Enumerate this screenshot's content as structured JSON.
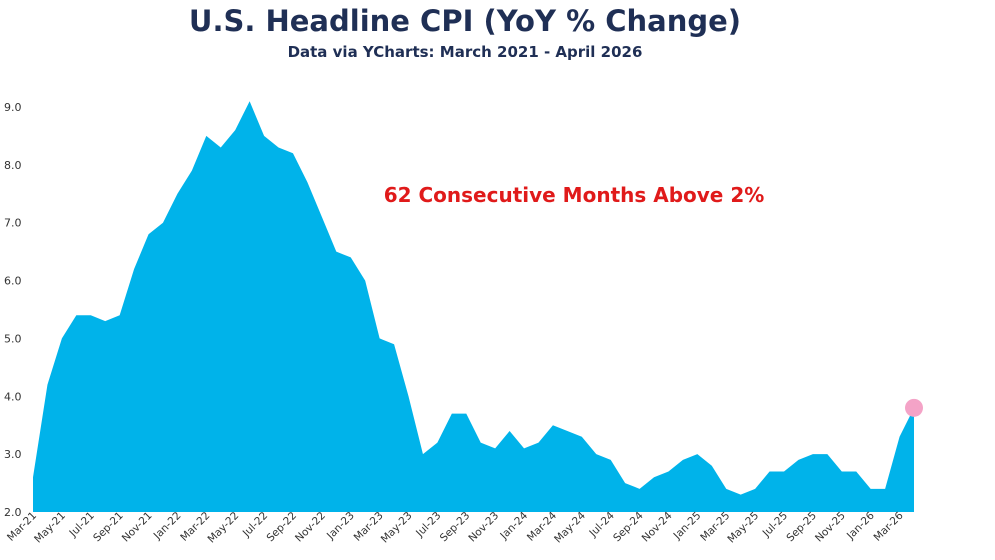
{
  "colors": {
    "title": "#1f2f55",
    "area": "#00b3ea",
    "annotation": "#e01a1a",
    "marker": "#f4a3c7"
  },
  "header": {
    "title": "U.S. Headline CPI (YoY % Change)",
    "subtitle": "Data via YCharts: March 2021 - April 2026"
  },
  "chart_data": {
    "type": "area",
    "title": "U.S. Headline CPI (YoY % Change)",
    "subtitle": "Data via YCharts: March 2021 - April 2026",
    "xlabel": "",
    "ylabel": "",
    "ylim": [
      2.0,
      9.0
    ],
    "yticks": [
      "2.0",
      "3.0",
      "4.0",
      "5.0",
      "6.0",
      "7.0",
      "8.0",
      "9.0"
    ],
    "grid": false,
    "legend": "none",
    "x_tick_labels": [
      "Mar-21",
      "May-21",
      "Jul-21",
      "Sep-21",
      "Nov-21",
      "Jan-22",
      "Mar-22",
      "May-22",
      "Jul-22",
      "Sep-22",
      "Nov-22",
      "Jan-23",
      "Mar-23",
      "May-23",
      "Jul-23",
      "Sep-23",
      "Nov-23",
      "Jan-24",
      "Mar-24",
      "May-24",
      "Jul-24",
      "Sep-24",
      "Nov-24",
      "Jan-25",
      "Mar-25",
      "May-25",
      "Jul-25",
      "Sep-25",
      "Nov-25",
      "Jan-26",
      "Mar-26"
    ],
    "x": [
      "Mar-21",
      "Apr-21",
      "May-21",
      "Jun-21",
      "Jul-21",
      "Aug-21",
      "Sep-21",
      "Oct-21",
      "Nov-21",
      "Dec-21",
      "Jan-22",
      "Feb-22",
      "Mar-22",
      "Apr-22",
      "May-22",
      "Jun-22",
      "Jul-22",
      "Aug-22",
      "Sep-22",
      "Oct-22",
      "Nov-22",
      "Dec-22",
      "Jan-23",
      "Feb-23",
      "Mar-23",
      "Apr-23",
      "May-23",
      "Jun-23",
      "Jul-23",
      "Aug-23",
      "Sep-23",
      "Oct-23",
      "Nov-23",
      "Dec-23",
      "Jan-24",
      "Feb-24",
      "Mar-24",
      "Apr-24",
      "May-24",
      "Jun-24",
      "Jul-24",
      "Aug-24",
      "Sep-24",
      "Oct-24",
      "Nov-24",
      "Dec-24",
      "Jan-25",
      "Feb-25",
      "Mar-25",
      "Apr-25",
      "May-25",
      "Jun-25",
      "Jul-25",
      "Aug-25",
      "Sep-25",
      "Oct-25",
      "Nov-25",
      "Dec-25",
      "Jan-26",
      "Feb-26",
      "Mar-26",
      "Apr-26"
    ],
    "values": [
      2.6,
      4.2,
      5.0,
      5.4,
      5.4,
      5.3,
      5.4,
      6.2,
      6.8,
      7.0,
      7.5,
      7.9,
      8.5,
      8.3,
      8.6,
      9.1,
      8.5,
      8.3,
      8.2,
      7.7,
      7.1,
      6.5,
      6.4,
      6.0,
      5.0,
      4.9,
      4.0,
      3.0,
      3.2,
      3.7,
      3.7,
      3.2,
      3.1,
      3.4,
      3.1,
      3.2,
      3.5,
      3.4,
      3.3,
      3.0,
      2.9,
      2.5,
      2.4,
      2.6,
      2.7,
      2.9,
      3.0,
      2.8,
      2.4,
      2.3,
      2.4,
      2.7,
      2.7,
      2.9,
      3.0,
      3.0,
      2.7,
      2.7,
      2.4,
      2.4,
      3.3,
      3.8
    ],
    "annotations": [
      {
        "text": "62 Consecutive Months Above 2%"
      }
    ],
    "highlight": {
      "x": "Apr-26",
      "value": 3.8
    }
  }
}
